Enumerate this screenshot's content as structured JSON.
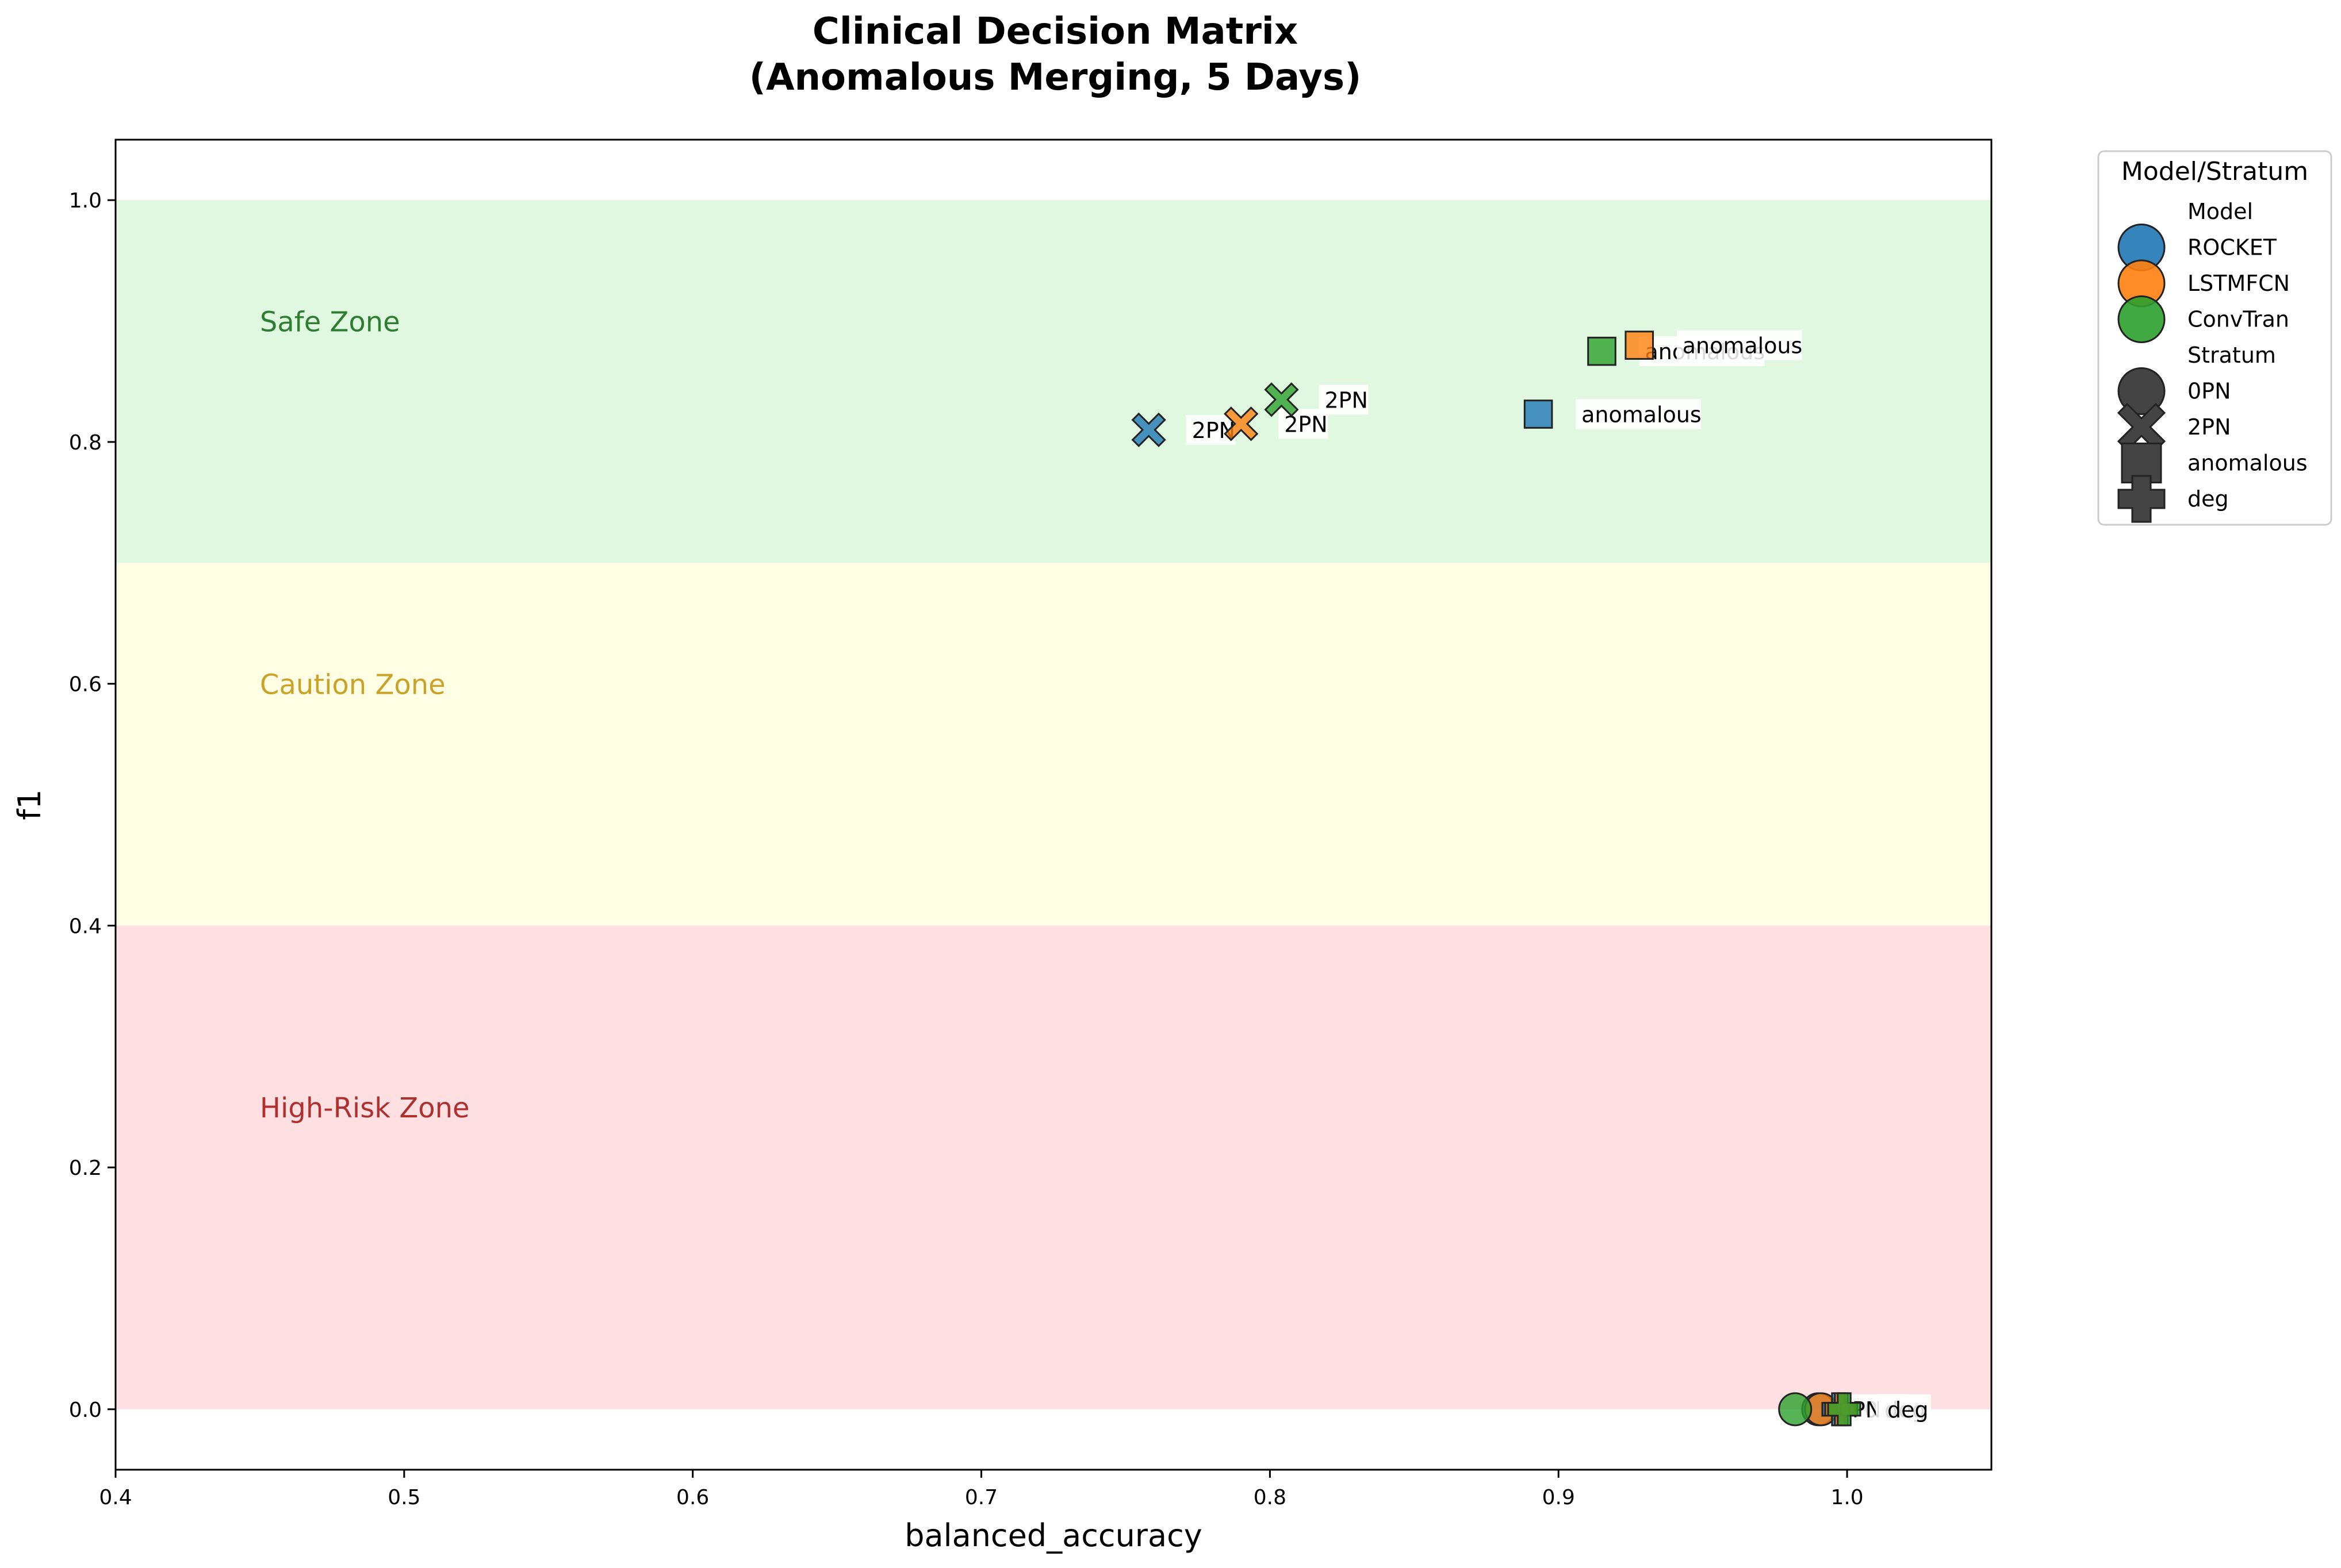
{
  "chart_data": {
    "type": "scatter",
    "title": "Clinical Decision Matrix",
    "subtitle": "(Anomalous Merging, 5 Days)",
    "xlabel": "balanced_accuracy",
    "ylabel": "f1",
    "xlim": [
      0.4,
      1.05
    ],
    "ylim": [
      -0.05,
      1.05
    ],
    "xticks": [
      "0.4",
      "0.5",
      "0.6",
      "0.7",
      "0.8",
      "0.9",
      "1.0"
    ],
    "yticks": [
      "0.0",
      "0.2",
      "0.4",
      "0.6",
      "0.8",
      "1.0"
    ],
    "grid": false,
    "legend_placement": "outside-right",
    "zones": [
      {
        "label": "Safe Zone",
        "y0": 0.7,
        "y1": 1.0,
        "fill": "#e0f8e0",
        "text_color": "#2e7d32"
      },
      {
        "label": "Caution Zone",
        "y0": 0.4,
        "y1": 0.7,
        "fill": "#fefee4",
        "text_color": "#c9a227"
      },
      {
        "label": "High-Risk Zone",
        "y0": 0.0,
        "y1": 0.4,
        "fill": "#fee0e3",
        "text_color": "#b03030"
      }
    ],
    "legend": {
      "title": "Model/Stratum",
      "model_header": "Model",
      "stratum_header": "Stratum",
      "models": [
        {
          "name": "ROCKET",
          "color": "#1f77b4"
        },
        {
          "name": "LSTMFCN",
          "color": "#ff7f0e"
        },
        {
          "name": "ConvTran",
          "color": "#2ca02c"
        }
      ],
      "strata": [
        {
          "name": "0PN",
          "marker": "circle"
        },
        {
          "name": "2PN",
          "marker": "x"
        },
        {
          "name": "anomalous",
          "marker": "square"
        },
        {
          "name": "deg",
          "marker": "plus"
        }
      ]
    },
    "points": [
      {
        "model": "ROCKET",
        "stratum": "2PN",
        "x": 0.758,
        "y": 0.81,
        "label": "2PN"
      },
      {
        "model": "LSTMFCN",
        "stratum": "2PN",
        "x": 0.79,
        "y": 0.815,
        "label": "2PN"
      },
      {
        "model": "ConvTran",
        "stratum": "2PN",
        "x": 0.804,
        "y": 0.835,
        "label": "2PN"
      },
      {
        "model": "ROCKET",
        "stratum": "anomalous",
        "x": 0.893,
        "y": 0.823,
        "label": "anomalous"
      },
      {
        "model": "ConvTran",
        "stratum": "anomalous",
        "x": 0.915,
        "y": 0.875,
        "label": "anomalous"
      },
      {
        "model": "LSTMFCN",
        "stratum": "anomalous",
        "x": 0.928,
        "y": 0.88,
        "label": "anomalous"
      },
      {
        "model": "ROCKET",
        "stratum": "0PN",
        "x": 0.99,
        "y": 0.0,
        "label": "0PN"
      },
      {
        "model": "LSTMFCN",
        "stratum": "0PN",
        "x": 0.991,
        "y": 0.0,
        "label": "0PN"
      },
      {
        "model": "ConvTran",
        "stratum": "0PN",
        "x": 0.982,
        "y": 0.0,
        "label": "0PN"
      },
      {
        "model": "ROCKET",
        "stratum": "deg",
        "x": 0.997,
        "y": 0.0,
        "label": "deg"
      },
      {
        "model": "LSTMFCN",
        "stratum": "deg",
        "x": 0.998,
        "y": 0.0,
        "label": "deg"
      },
      {
        "model": "ConvTran",
        "stratum": "deg",
        "x": 0.999,
        "y": 0.0,
        "label": "deg"
      }
    ]
  }
}
